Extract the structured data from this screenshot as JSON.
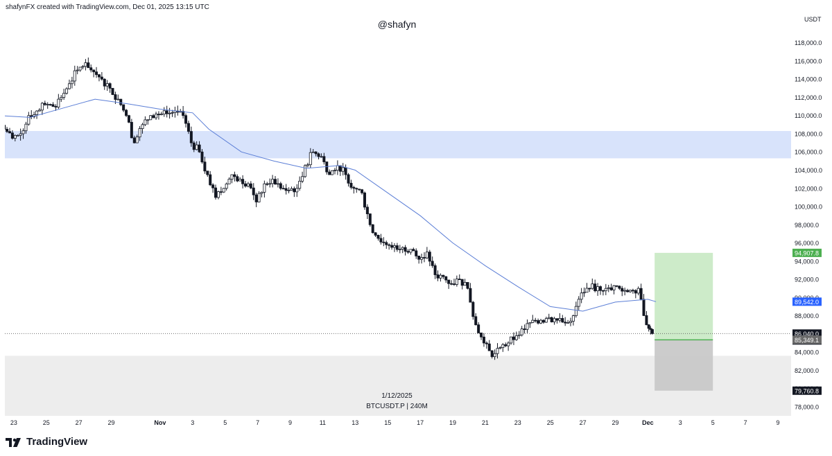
{
  "header": {
    "credit": "shafynFX created with TradingView.com, Dec 01, 2025 13:15 UTC",
    "watermark": "@shafyn"
  },
  "footer": {
    "brand": "TradingView",
    "date_label": "1/12/2025",
    "symbol_label": "BTCUSDT.P | 240M"
  },
  "colors": {
    "up": "#131722",
    "down": "#131722",
    "ma_line": "#5b7ed6",
    "supply_zone": "#d8e3fb",
    "demand_zone": "#ededed",
    "target_zone": "#cdebc9",
    "stop_zone": "#c9c9c9",
    "target_label": "#4caf50",
    "ma_label": "#2962ff",
    "price_label": "#131722"
  },
  "chart_data": {
    "type": "candlestick",
    "currency": "USDT",
    "ylim": [
      77000,
      119500
    ],
    "y_ticks": [
      78000,
      80000,
      82000,
      84000,
      86000,
      88000,
      90000,
      92000,
      94000,
      96000,
      98000,
      100000,
      102000,
      104000,
      106000,
      108000,
      110000,
      112000,
      114000,
      116000,
      118000
    ],
    "y_tick_labels": [
      "78,000.0",
      "80,000.0",
      "82,000.0",
      "84,000.0",
      "86,000.0",
      "88,000.0",
      "90,000.0",
      "92,000.0",
      "94,000.0",
      "96,000.0",
      "98,000.0",
      "100,000.0",
      "102,000.0",
      "104,000.0",
      "106,000.0",
      "108,000.0",
      "110,000.0",
      "112,000.0",
      "114,000.0",
      "116,000.0",
      "118,000.0"
    ],
    "x_ticks": [
      {
        "label": "23",
        "date": "2025-10-23"
      },
      {
        "label": "25",
        "date": "2025-10-25"
      },
      {
        "label": "27",
        "date": "2025-10-27"
      },
      {
        "label": "29",
        "date": "2025-10-29"
      },
      {
        "label": "Nov",
        "date": "2025-11-01"
      },
      {
        "label": "3",
        "date": "2025-11-03"
      },
      {
        "label": "5",
        "date": "2025-11-05"
      },
      {
        "label": "7",
        "date": "2025-11-07"
      },
      {
        "label": "9",
        "date": "2025-11-09"
      },
      {
        "label": "11",
        "date": "2025-11-11"
      },
      {
        "label": "13",
        "date": "2025-11-13"
      },
      {
        "label": "15",
        "date": "2025-11-15"
      },
      {
        "label": "17",
        "date": "2025-11-17"
      },
      {
        "label": "19",
        "date": "2025-11-19"
      },
      {
        "label": "21",
        "date": "2025-11-21"
      },
      {
        "label": "23",
        "date": "2025-11-23"
      },
      {
        "label": "25",
        "date": "2025-11-25"
      },
      {
        "label": "27",
        "date": "2025-11-27"
      },
      {
        "label": "29",
        "date": "2025-11-29"
      },
      {
        "label": "Dec",
        "date": "2025-12-01"
      },
      {
        "label": "3",
        "date": "2025-12-03"
      },
      {
        "label": "5",
        "date": "2025-12-05"
      },
      {
        "label": "7",
        "date": "2025-12-07"
      },
      {
        "label": "9",
        "date": "2025-12-09"
      }
    ],
    "price_path": [
      [
        "2025-10-22",
        110500
      ],
      [
        "2025-10-22T12:00",
        108500
      ],
      [
        "2025-10-23",
        107500
      ],
      [
        "2025-10-23T12:00",
        108000
      ],
      [
        "2025-10-24",
        110000
      ],
      [
        "2025-10-24T12:00",
        110500
      ],
      [
        "2025-10-25",
        111200
      ],
      [
        "2025-10-25T12:00",
        111000
      ],
      [
        "2025-10-26",
        112000
      ],
      [
        "2025-10-26T12:00",
        113500
      ],
      [
        "2025-10-27",
        115000
      ],
      [
        "2025-10-27T12:00",
        115800
      ],
      [
        "2025-10-28",
        114800
      ],
      [
        "2025-10-28T12:00",
        114000
      ],
      [
        "2025-10-29",
        113000
      ],
      [
        "2025-10-29T12:00",
        111800
      ],
      [
        "2025-10-30",
        110000
      ],
      [
        "2025-10-30T12:00",
        107000
      ],
      [
        "2025-10-31",
        109000
      ],
      [
        "2025-10-31T12:00",
        110000
      ],
      [
        "2025-11-01",
        110100
      ],
      [
        "2025-11-01T12:00",
        110200
      ],
      [
        "2025-11-02",
        110500
      ],
      [
        "2025-11-02T12:00",
        110000
      ],
      [
        "2025-11-03",
        107000
      ],
      [
        "2025-11-03T12:00",
        106000
      ],
      [
        "2025-11-04",
        103500
      ],
      [
        "2025-11-04T12:00",
        101000
      ],
      [
        "2025-11-05",
        102000
      ],
      [
        "2025-11-05T12:00",
        103500
      ],
      [
        "2025-11-06",
        103000
      ],
      [
        "2025-11-06T12:00",
        102500
      ],
      [
        "2025-11-07",
        100500
      ],
      [
        "2025-11-07T12:00",
        102500
      ],
      [
        "2025-11-08",
        103000
      ],
      [
        "2025-11-08T12:00",
        102000
      ],
      [
        "2025-11-09",
        101800
      ],
      [
        "2025-11-09T12:00",
        102000
      ],
      [
        "2025-11-10",
        104500
      ],
      [
        "2025-11-10T12:00",
        106000
      ],
      [
        "2025-11-11",
        105500
      ],
      [
        "2025-11-11T12:00",
        103500
      ],
      [
        "2025-11-12",
        104500
      ],
      [
        "2025-11-12T12:00",
        103500
      ],
      [
        "2025-11-13",
        102000
      ],
      [
        "2025-11-13T12:00",
        101500
      ],
      [
        "2025-11-14",
        98000
      ],
      [
        "2025-11-14T12:00",
        96500
      ],
      [
        "2025-11-15",
        95800
      ],
      [
        "2025-11-15T12:00",
        95700
      ],
      [
        "2025-11-16",
        95500
      ],
      [
        "2025-11-16T12:00",
        95300
      ],
      [
        "2025-11-17",
        94200
      ],
      [
        "2025-11-17T12:00",
        95000
      ],
      [
        "2025-11-18",
        92500
      ],
      [
        "2025-11-18T12:00",
        92300
      ],
      [
        "2025-11-19",
        91500
      ],
      [
        "2025-11-19T12:00",
        92000
      ],
      [
        "2025-11-20",
        91000
      ],
      [
        "2025-11-20T12:00",
        87000
      ],
      [
        "2025-11-21",
        85000
      ],
      [
        "2025-11-21T12:00",
        83500
      ],
      [
        "2025-11-22",
        84500
      ],
      [
        "2025-11-22T12:00",
        85000
      ],
      [
        "2025-11-23",
        85800
      ],
      [
        "2025-11-23T12:00",
        86500
      ],
      [
        "2025-11-24",
        87500
      ],
      [
        "2025-11-24T12:00",
        87500
      ],
      [
        "2025-11-25",
        87800
      ],
      [
        "2025-11-25T12:00",
        87500
      ],
      [
        "2025-11-26",
        87200
      ],
      [
        "2025-11-26T12:00",
        88000
      ],
      [
        "2025-11-27",
        90500
      ],
      [
        "2025-11-27T12:00",
        91000
      ],
      [
        "2025-11-28",
        91200
      ],
      [
        "2025-11-28T12:00",
        91000
      ],
      [
        "2025-11-29",
        91300
      ],
      [
        "2025-11-29T12:00",
        90700
      ],
      [
        "2025-11-30",
        90800
      ],
      [
        "2025-11-30T12:00",
        91000
      ],
      [
        "2025-12-01",
        87000
      ],
      [
        "2025-12-01T08:00",
        86040
      ]
    ],
    "ma_path": [
      [
        "2025-10-22",
        110000
      ],
      [
        "2025-10-24",
        109800
      ],
      [
        "2025-10-26",
        110800
      ],
      [
        "2025-10-28",
        111800
      ],
      [
        "2025-10-30",
        111300
      ],
      [
        "2025-11-01",
        110700
      ],
      [
        "2025-11-03",
        110300
      ],
      [
        "2025-11-04",
        108500
      ],
      [
        "2025-11-06",
        106000
      ],
      [
        "2025-11-08",
        105000
      ],
      [
        "2025-11-10",
        104200
      ],
      [
        "2025-11-12",
        104500
      ],
      [
        "2025-11-13",
        104000
      ],
      [
        "2025-11-15",
        101500
      ],
      [
        "2025-11-17",
        99000
      ],
      [
        "2025-11-19",
        96000
      ],
      [
        "2025-11-21",
        93500
      ],
      [
        "2025-11-23",
        91200
      ],
      [
        "2025-11-25",
        89000
      ],
      [
        "2025-11-27",
        88500
      ],
      [
        "2025-11-29",
        89500
      ],
      [
        "2025-12-01",
        89800
      ],
      [
        "2025-12-01T12:00",
        89542
      ]
    ],
    "zones": [
      {
        "name": "supply",
        "y_from": 105300,
        "y_to": 108300,
        "x_from": "2025-10-22",
        "x_to": "2025-12-09"
      },
      {
        "name": "demand",
        "y_from": 77000,
        "y_to": 83600,
        "x_from": "2025-10-22",
        "x_to": "2025-12-09"
      }
    ],
    "position": {
      "entry": 85349.1,
      "target": 94907.8,
      "stop": 79760.8,
      "x_from": "2025-12-01T10:00",
      "x_to": "2025-12-05"
    },
    "current_price": 86040.0,
    "countdown": "02:44:51",
    "price_labels": [
      {
        "value": 94907.8,
        "text": "94,907.8",
        "kind": "target"
      },
      {
        "value": 89542.0,
        "text": "89,542.0",
        "kind": "ma"
      },
      {
        "value": 86040.0,
        "text": "86,040.0",
        "kind": "last"
      },
      {
        "value": 85349.1,
        "text": "85,349.1",
        "kind": "entry"
      },
      {
        "value": 79760.8,
        "text": "79,760.8",
        "kind": "stop"
      }
    ]
  }
}
